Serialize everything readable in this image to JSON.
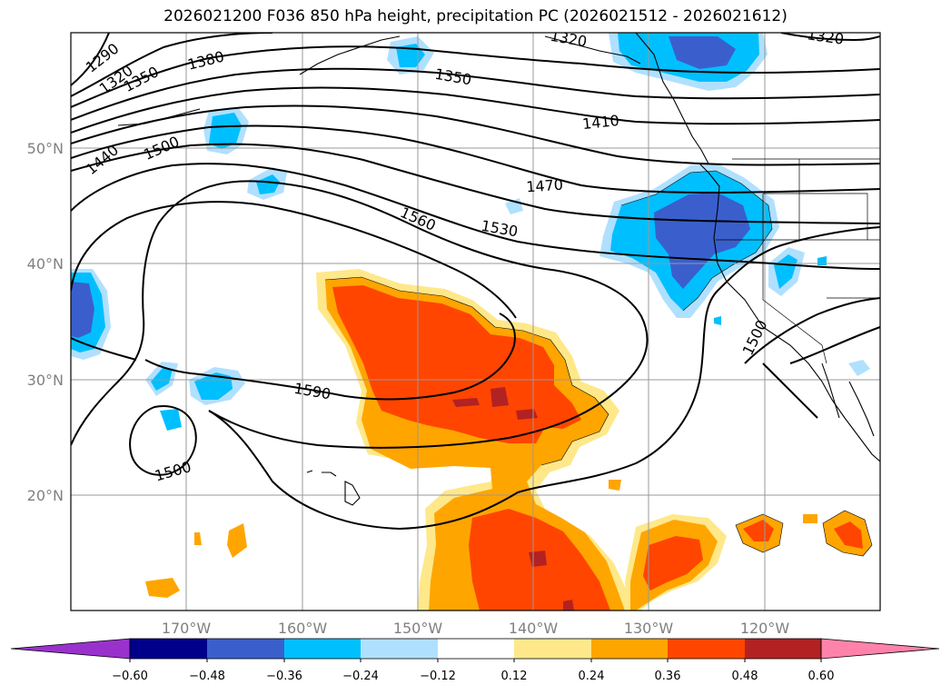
{
  "title": "2026021200 F036 850 hPa height, precipitation PC (2026021512 - 2026021612)",
  "map": {
    "projection": "cylindrical",
    "lon_range": [
      -180,
      -110
    ],
    "lat_range": [
      10,
      60
    ],
    "lat_labels": [
      "20°N",
      "30°N",
      "40°N",
      "50°N"
    ],
    "lon_labels": [
      "170°W",
      "160°W",
      "150°W",
      "140°W",
      "130°W",
      "120°W"
    ],
    "gridlines": true,
    "background": "#ffffff"
  },
  "contour_labels": [
    "1290",
    "1320",
    "1350",
    "1380",
    "1440",
    "1500",
    "1350",
    "1410",
    "1470",
    "1560",
    "1530",
    "1590",
    "1500",
    "1500",
    "1320",
    "1320"
  ],
  "colorbar": {
    "ticks": [
      "−0.60",
      "−0.48",
      "−0.36",
      "−0.24",
      "−0.12",
      "0.12",
      "0.24",
      "0.36",
      "0.48",
      "0.60"
    ],
    "colors": [
      "#9932cc",
      "#00008b",
      "#3a5fcd",
      "#00bfff",
      "#b0e0ff",
      "#ffffff",
      "#ffe88a",
      "#ffa500",
      "#ff4500",
      "#b22222",
      "#ff82ab"
    ],
    "extend": "both"
  },
  "legend_colors": {
    "strong_negative": "#3a5fcd",
    "negative": "#00bfff",
    "weak_negative": "#b0e0ff",
    "weak_positive": "#ffe88a",
    "positive": "#ffa500",
    "strong_positive": "#ff4500",
    "very_strong_positive": "#b22222"
  }
}
